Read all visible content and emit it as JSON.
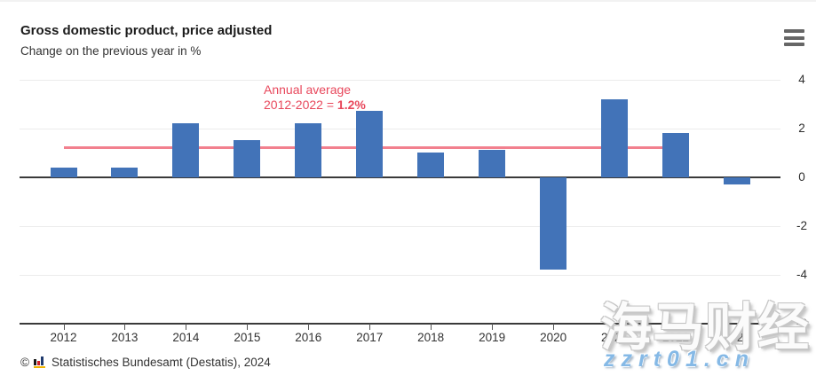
{
  "header": {
    "title": "Gross domestic product, price adjusted",
    "subtitle": "Change on the previous year in %"
  },
  "annotation": {
    "line1": "Annual average",
    "line2_label": "2012-2022 = ",
    "line2_value": "1.2%"
  },
  "chart_data": {
    "type": "bar",
    "title": "Gross domestic product, price adjusted",
    "subtitle": "Change on the previous year in %",
    "unit": "%",
    "categories": [
      "2012",
      "2013",
      "2014",
      "2015",
      "2016",
      "2017",
      "2018",
      "2019",
      "2020",
      "2021",
      "2022",
      "2023"
    ],
    "values": [
      0.4,
      0.4,
      2.2,
      1.5,
      2.2,
      2.7,
      1.0,
      1.1,
      -3.8,
      3.2,
      1.8,
      -0.3
    ],
    "average_line": {
      "value": 1.2,
      "from": "2012",
      "to": "2022",
      "label": "Annual average 2012-2022 = 1.2%"
    },
    "ylim": [
      -6,
      4
    ],
    "yticks": [
      4,
      2,
      0,
      -2,
      -4,
      -6
    ],
    "grid": "horizontal",
    "legend": "none"
  },
  "footer": {
    "copyright": "©",
    "source": "Statistisches Bundesamt (Destatis), 2024"
  },
  "watermark": {
    "text_cjk": "海马财经",
    "text_url": "zzrt01.cn"
  },
  "colors": {
    "bar": "#4273b8",
    "average_line": "#f2808e",
    "annotation_text": "#e8485c",
    "grid": "#ececec",
    "axis": "#3a3a3a",
    "watermark_url": "#85b9e6"
  }
}
